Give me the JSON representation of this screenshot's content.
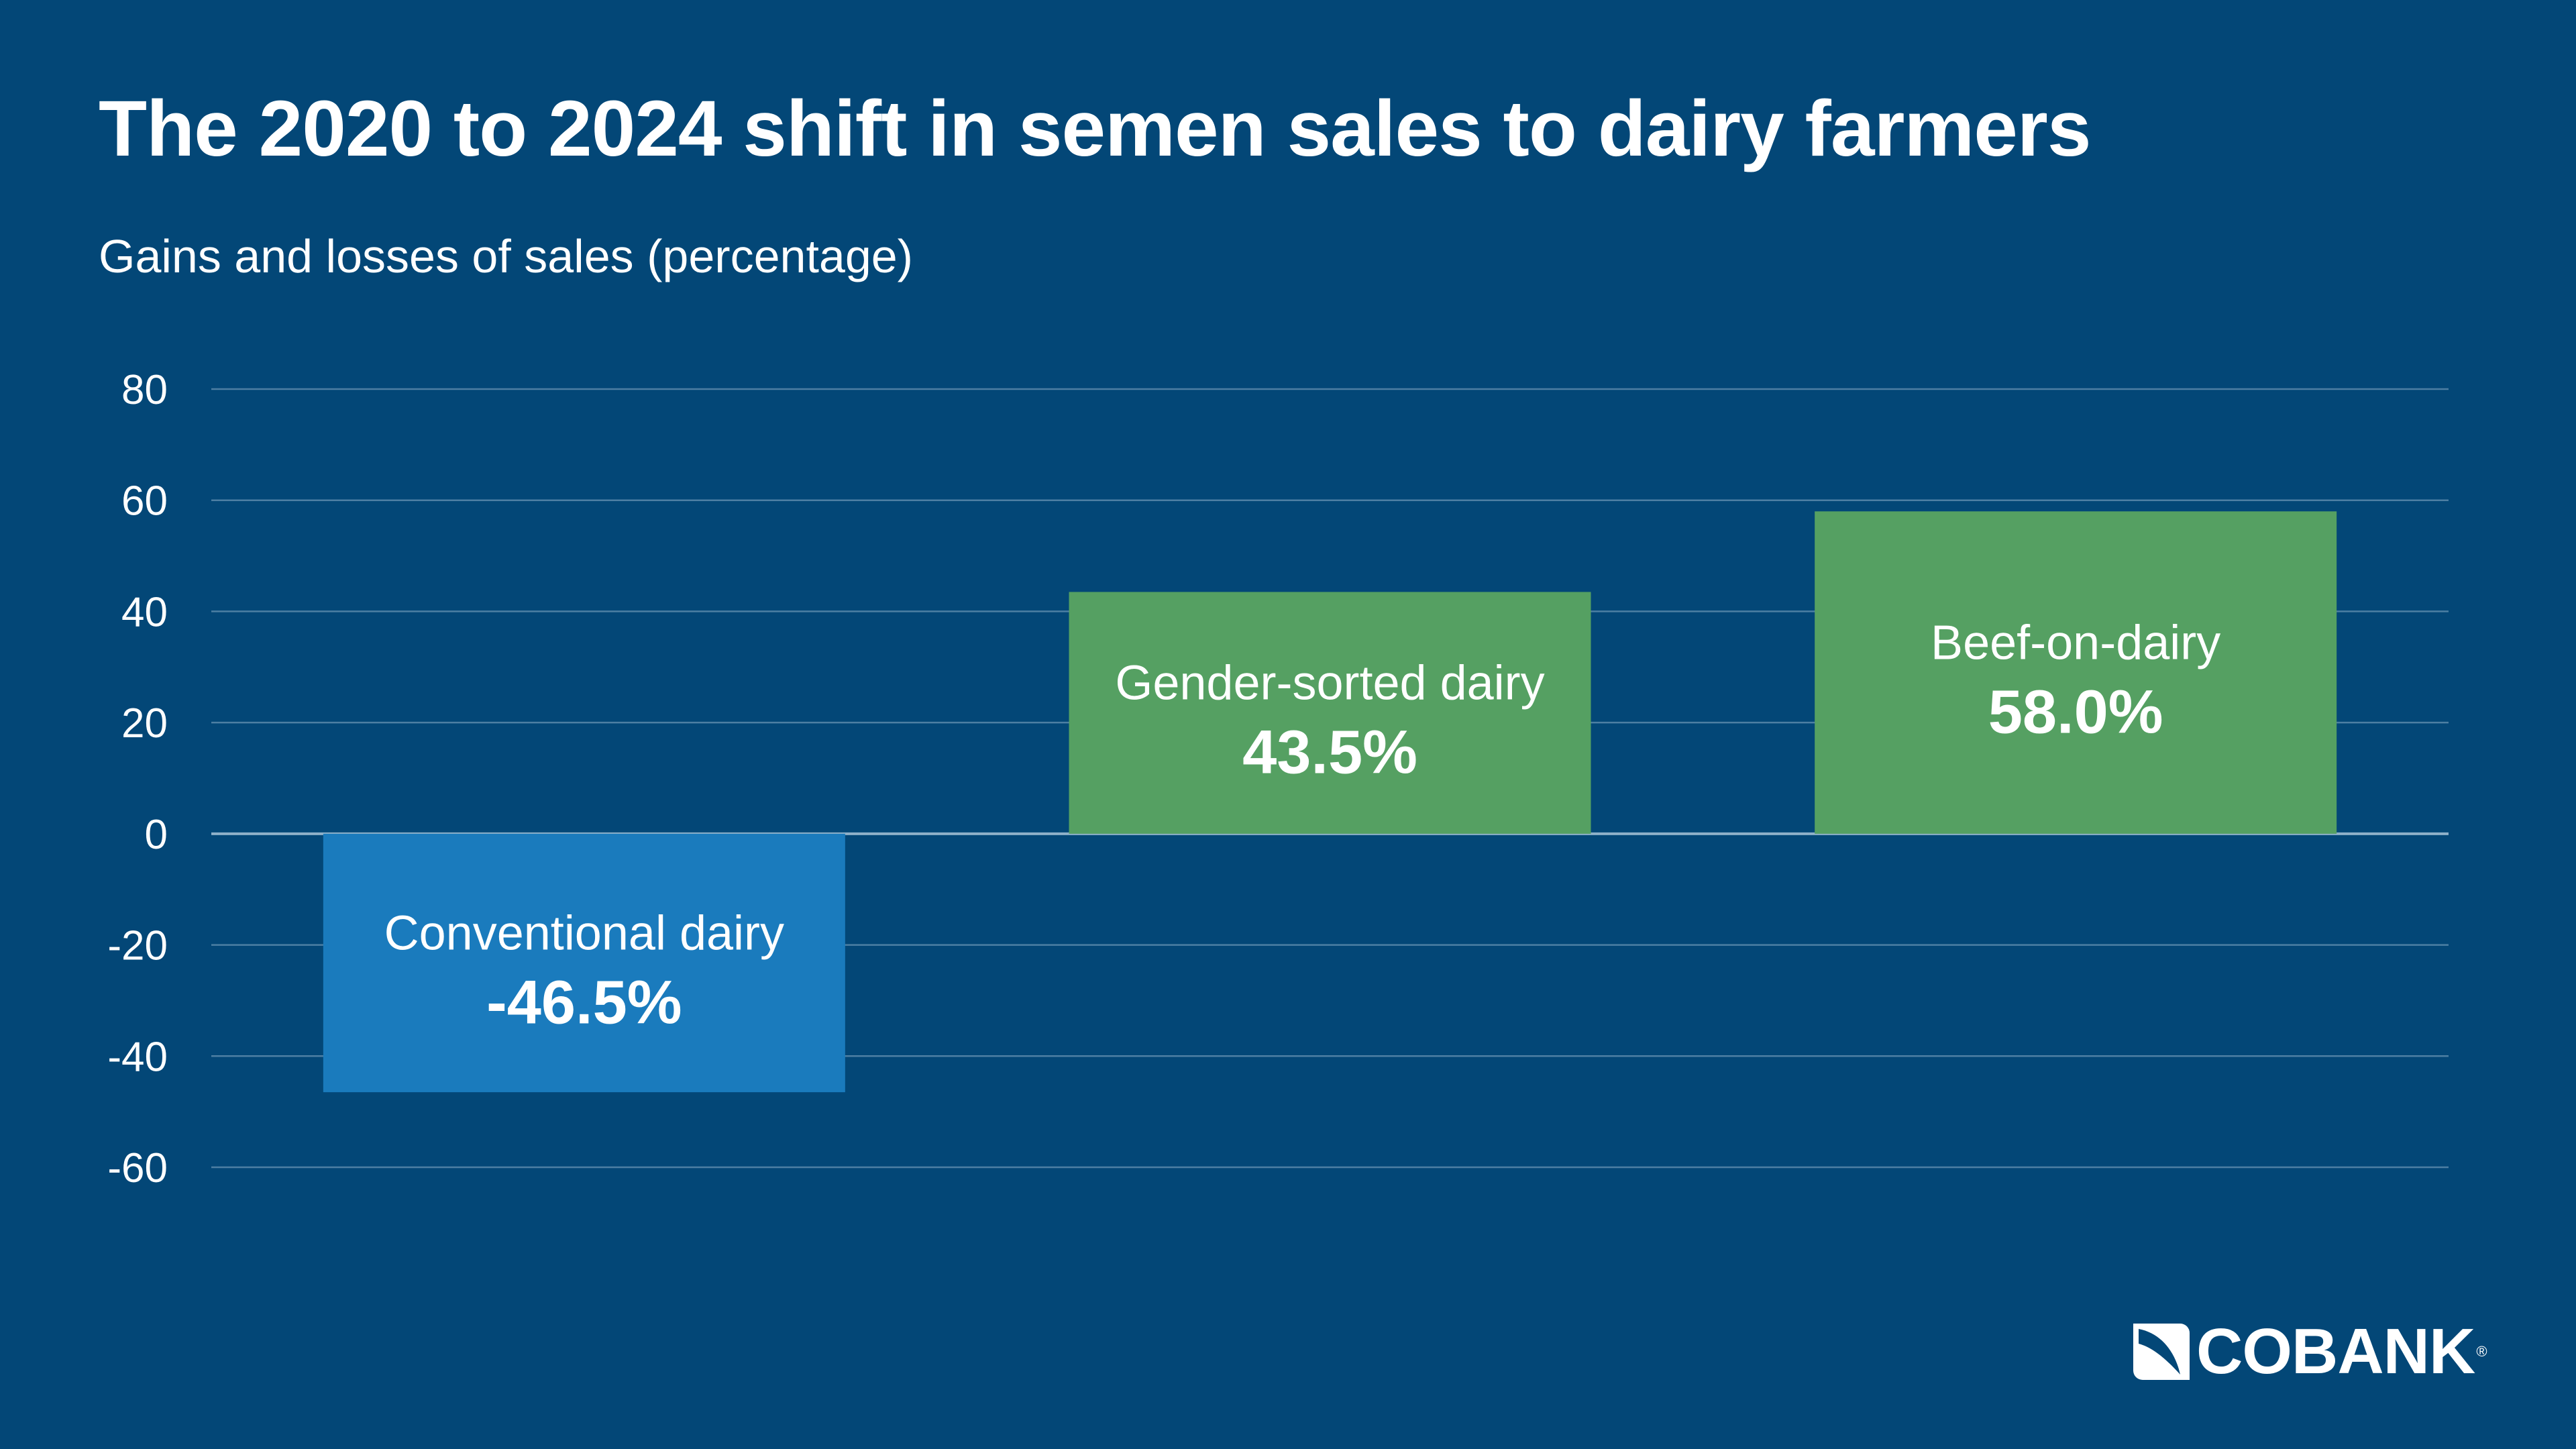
{
  "chart_data": {
    "type": "bar",
    "title": "The 2020 to 2024 shift in semen sales to dairy farmers",
    "subtitle": "Gains and losses of sales (percentage)",
    "categories": [
      "Conventional dairy",
      "Gender-sorted dairy",
      "Beef-on-dairy"
    ],
    "values": [
      -46.5,
      43.5,
      58.0
    ],
    "value_labels": [
      "-46.5%",
      "43.5%",
      "58.0%"
    ],
    "bar_colors": [
      "#1a7bbd",
      "#55a062",
      "#55a062"
    ],
    "ylim": [
      -60,
      80
    ],
    "yticks": [
      80,
      60,
      40,
      20,
      0,
      -20,
      -40,
      -60
    ],
    "grid": true,
    "legend": "none"
  },
  "colors": {
    "background": "#034777",
    "gridline": "#4d7fa3",
    "text": "#ffffff"
  },
  "brand": {
    "logo_text": "COBANK",
    "logo_registered": "®",
    "logo_icon": "cobank-mark-icon"
  }
}
